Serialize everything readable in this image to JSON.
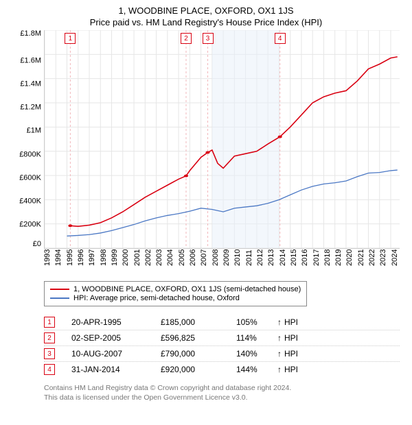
{
  "title": "1, WOODBINE PLACE, OXFORD, OX1 1JS",
  "subtitle": "Price paid vs. HM Land Registry's House Price Index (HPI)",
  "chart": {
    "type": "line",
    "x_range": [
      1993,
      2024.8
    ],
    "y_range": [
      0,
      1800000
    ],
    "y_ticks": [
      "£1.8M",
      "£1.6M",
      "£1.4M",
      "£1.2M",
      "£1M",
      "£800K",
      "£600K",
      "£400K",
      "£200K",
      "£0"
    ],
    "x_ticks": [
      "1993",
      "1994",
      "1995",
      "1996",
      "1997",
      "1998",
      "1999",
      "2000",
      "2001",
      "2002",
      "2003",
      "2004",
      "2005",
      "2006",
      "2007",
      "2008",
      "2009",
      "2010",
      "2011",
      "2012",
      "2013",
      "2014",
      "2015",
      "2016",
      "2017",
      "2018",
      "2019",
      "2020",
      "2021",
      "2022",
      "2023",
      "2024"
    ],
    "grid_color": "#e6e6e6",
    "background_color": "#ffffff",
    "shaded_2008_color": "#e8f0fa",
    "marker_vline_color": "#f2b7bb",
    "axis_font_size": 11,
    "series_property": {
      "label": "1, WOODBINE PLACE, OXFORD, OX1 1JS (semi-detached house)",
      "color": "#d90011",
      "line_width": 1.6,
      "data": [
        [
          1995.3,
          185000
        ],
        [
          1996.0,
          180000
        ],
        [
          1997.0,
          190000
        ],
        [
          1998.0,
          210000
        ],
        [
          1999.0,
          250000
        ],
        [
          2000.0,
          300000
        ],
        [
          2001.0,
          360000
        ],
        [
          2002.0,
          420000
        ],
        [
          2003.0,
          470000
        ],
        [
          2004.0,
          520000
        ],
        [
          2005.0,
          570000
        ],
        [
          2005.67,
          596825
        ],
        [
          2006.0,
          640000
        ],
        [
          2007.0,
          750000
        ],
        [
          2007.61,
          790000
        ],
        [
          2008.0,
          810000
        ],
        [
          2008.5,
          700000
        ],
        [
          2009.0,
          660000
        ],
        [
          2010.0,
          760000
        ],
        [
          2011.0,
          780000
        ],
        [
          2012.0,
          800000
        ],
        [
          2013.0,
          860000
        ],
        [
          2014.08,
          920000
        ],
        [
          2015.0,
          1000000
        ],
        [
          2016.0,
          1100000
        ],
        [
          2017.0,
          1200000
        ],
        [
          2018.0,
          1250000
        ],
        [
          2019.0,
          1280000
        ],
        [
          2020.0,
          1300000
        ],
        [
          2021.0,
          1380000
        ],
        [
          2022.0,
          1480000
        ],
        [
          2023.0,
          1520000
        ],
        [
          2024.0,
          1570000
        ],
        [
          2024.6,
          1580000
        ]
      ],
      "markers": [
        {
          "n": "1",
          "x": 1995.3,
          "y": 185000
        },
        {
          "n": "2",
          "x": 2005.67,
          "y": 596825
        },
        {
          "n": "3",
          "x": 2007.61,
          "y": 790000
        },
        {
          "n": "4",
          "x": 2014.08,
          "y": 920000
        }
      ]
    },
    "series_hpi": {
      "label": "HPI: Average price, semi-detached house, Oxford",
      "color": "#4a77c4",
      "line_width": 1.3,
      "data": [
        [
          1995.0,
          100000
        ],
        [
          1996.0,
          105000
        ],
        [
          1997.0,
          112000
        ],
        [
          1998.0,
          125000
        ],
        [
          1999.0,
          145000
        ],
        [
          2000.0,
          170000
        ],
        [
          2001.0,
          195000
        ],
        [
          2002.0,
          225000
        ],
        [
          2003.0,
          250000
        ],
        [
          2004.0,
          270000
        ],
        [
          2005.0,
          285000
        ],
        [
          2006.0,
          305000
        ],
        [
          2007.0,
          330000
        ],
        [
          2008.0,
          320000
        ],
        [
          2009.0,
          300000
        ],
        [
          2010.0,
          330000
        ],
        [
          2011.0,
          340000
        ],
        [
          2012.0,
          350000
        ],
        [
          2013.0,
          370000
        ],
        [
          2014.0,
          400000
        ],
        [
          2015.0,
          440000
        ],
        [
          2016.0,
          480000
        ],
        [
          2017.0,
          510000
        ],
        [
          2018.0,
          530000
        ],
        [
          2019.0,
          540000
        ],
        [
          2020.0,
          555000
        ],
        [
          2021.0,
          590000
        ],
        [
          2022.0,
          620000
        ],
        [
          2023.0,
          625000
        ],
        [
          2024.0,
          640000
        ],
        [
          2024.6,
          645000
        ]
      ]
    }
  },
  "sales": [
    {
      "n": "1",
      "date": "20-APR-1995",
      "price": "£185,000",
      "pct": "105%",
      "arrow": "↑",
      "suffix": "HPI"
    },
    {
      "n": "2",
      "date": "02-SEP-2005",
      "price": "£596,825",
      "pct": "114%",
      "arrow": "↑",
      "suffix": "HPI"
    },
    {
      "n": "3",
      "date": "10-AUG-2007",
      "price": "£790,000",
      "pct": "140%",
      "arrow": "↑",
      "suffix": "HPI"
    },
    {
      "n": "4",
      "date": "31-JAN-2014",
      "price": "£920,000",
      "pct": "144%",
      "arrow": "↑",
      "suffix": "HPI"
    }
  ],
  "footer_line1": "Contains HM Land Registry data © Crown copyright and database right 2024.",
  "footer_line2": "This data is licensed under the Open Government Licence v3.0."
}
